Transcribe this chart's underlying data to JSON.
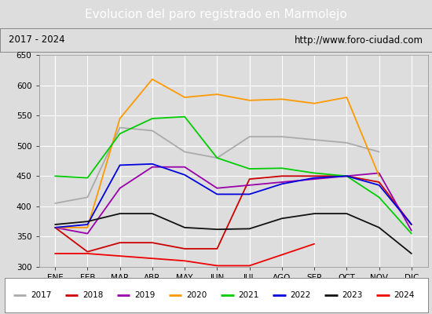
{
  "title": "Evolucion del paro registrado en Marmolejo",
  "subtitle_left": "2017 - 2024",
  "subtitle_right": "http://www.foro-ciudad.com",
  "months": [
    "ENE",
    "FEB",
    "MAR",
    "ABR",
    "MAY",
    "JUN",
    "JUL",
    "AGO",
    "SEP",
    "OCT",
    "NOV",
    "DIC"
  ],
  "ylim": [
    300,
    650
  ],
  "yticks": [
    300,
    350,
    400,
    450,
    500,
    550,
    600,
    650
  ],
  "series": {
    "2017": {
      "color": "#aaaaaa",
      "values": [
        405,
        415,
        530,
        525,
        490,
        480,
        515,
        515,
        510,
        505,
        490,
        null
      ]
    },
    "2018": {
      "color": "#cc0000",
      "values": [
        365,
        325,
        340,
        340,
        330,
        330,
        445,
        450,
        450,
        450,
        440,
        370
      ]
    },
    "2019": {
      "color": "#9900aa",
      "values": [
        365,
        355,
        430,
        465,
        465,
        430,
        435,
        440,
        445,
        450,
        455,
        360
      ]
    },
    "2020": {
      "color": "#ff9900",
      "values": [
        365,
        365,
        545,
        610,
        580,
        585,
        575,
        577,
        570,
        580,
        450,
        null
      ]
    },
    "2021": {
      "color": "#00cc00",
      "values": [
        450,
        447,
        520,
        545,
        548,
        480,
        462,
        463,
        455,
        450,
        415,
        355
      ]
    },
    "2022": {
      "color": "#0000dd",
      "values": [
        365,
        370,
        468,
        470,
        452,
        420,
        420,
        437,
        447,
        450,
        435,
        370
      ]
    },
    "2023": {
      "color": "#111111",
      "values": [
        370,
        375,
        388,
        388,
        365,
        362,
        363,
        380,
        388,
        388,
        365,
        322
      ]
    },
    "2024": {
      "color": "#ee0000",
      "values": [
        322,
        322,
        null,
        null,
        310,
        302,
        302,
        null,
        338,
        null,
        null,
        null
      ]
    }
  },
  "background_color": "#dddddd",
  "plot_bg_color": "#dddddd",
  "title_bg_color": "#4488bb",
  "title_color": "white",
  "grid_color": "white",
  "legend_bg": "white",
  "fig_width": 5.5,
  "fig_height": 4.0,
  "dpi": 100
}
